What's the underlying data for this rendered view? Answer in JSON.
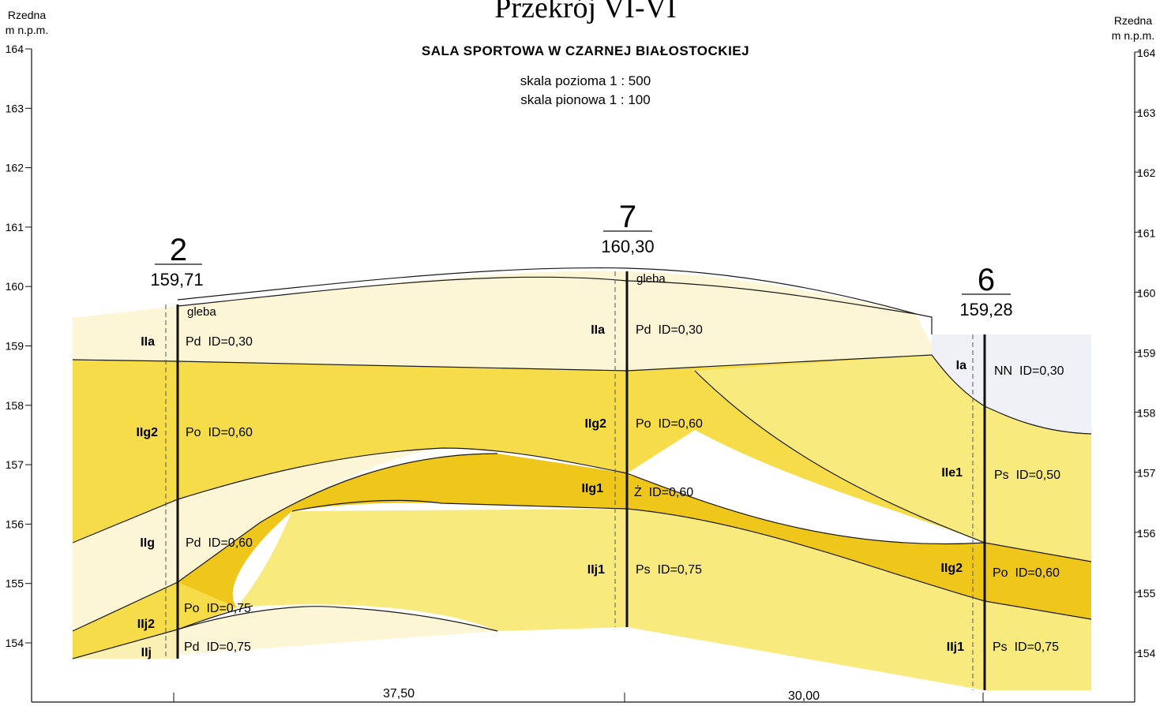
{
  "header": {
    "title": "Przekrój VI-VI",
    "subtitle": "SALA SPORTOWA W CZARNEJ BIAŁOSTOCKIEJ",
    "scale_h": "skala pozioma 1 : 500",
    "scale_v": "skala pionowa 1 : 100"
  },
  "axis": {
    "label_top": "Rzedna",
    "label_bottom": "m n.p.m.",
    "ticks": [
      "164",
      "163",
      "162",
      "161",
      "160",
      "159",
      "158",
      "157",
      "156",
      "155",
      "154"
    ]
  },
  "boreholes": [
    {
      "number": "2",
      "elevation": "159,71",
      "top_label": "gleba",
      "layers": [
        {
          "code": "IIa",
          "desc": "Pd  ID=0,30"
        },
        {
          "code": "IIg2",
          "desc": "Po  ID=0,60"
        },
        {
          "code": "IIg",
          "desc": "Pd  ID=0,60"
        },
        {
          "code": "IIj2",
          "desc": "Po  ID=0,75"
        },
        {
          "code": "IIj",
          "desc": "Pd  ID=0,75"
        }
      ]
    },
    {
      "number": "7",
      "elevation": "160,30",
      "top_label": "gleba",
      "layers": [
        {
          "code": "IIa",
          "desc": "Pd  ID=0,30"
        },
        {
          "code": "IIg2",
          "desc": "Po  ID=0,60"
        },
        {
          "code": "IIg1",
          "desc": "Ż  ID=0,60"
        },
        {
          "code": "IIj1",
          "desc": "Ps  ID=0,75"
        }
      ]
    },
    {
      "number": "6",
      "elevation": "159,28",
      "layers": [
        {
          "code": "Ia",
          "desc": "NN  ID=0,30"
        },
        {
          "code": "IIe1",
          "desc": "Ps  ID=0,50"
        },
        {
          "code": "IIg2",
          "desc": "Po  ID=0,60"
        },
        {
          "code": "IIj1",
          "desc": "Ps  ID=0,75"
        }
      ]
    }
  ],
  "distances": [
    "37,50",
    "30,00"
  ],
  "colors": {
    "light_yellow": "#fdf6d6",
    "pale_yellow": "#fbf0b4",
    "mid_yellow": "#f9ea7e",
    "bright_yellow": "#f6dc48",
    "dark_yellow": "#efc61a",
    "fill_gray": "#eff1f6",
    "line": "#1a1a1a"
  }
}
